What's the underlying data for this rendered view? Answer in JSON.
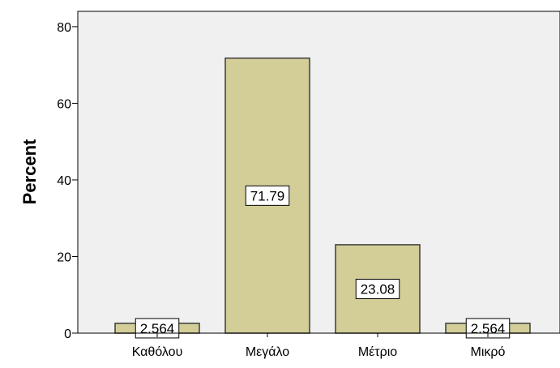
{
  "chart_data": {
    "type": "bar",
    "title": "",
    "xlabel": "",
    "ylabel": "Percent",
    "ylim": [
      0,
      84
    ],
    "yticks": [
      0,
      20,
      40,
      60,
      80
    ],
    "categories": [
      "Καθόλου",
      "Μεγάλο",
      "Μέτριο",
      "Μικρό"
    ],
    "values": [
      2.564,
      71.79,
      23.08,
      2.564
    ],
    "data_labels": [
      "2.564",
      "71.79",
      "23.08",
      "2.564"
    ],
    "grid": false,
    "legend": "none"
  },
  "colors": {
    "plot_background": "#f0f0f0",
    "bar_fill": "#d3ce97",
    "bar_stroke": "#3c3c3c",
    "label_box_fill": "#ffffff"
  }
}
